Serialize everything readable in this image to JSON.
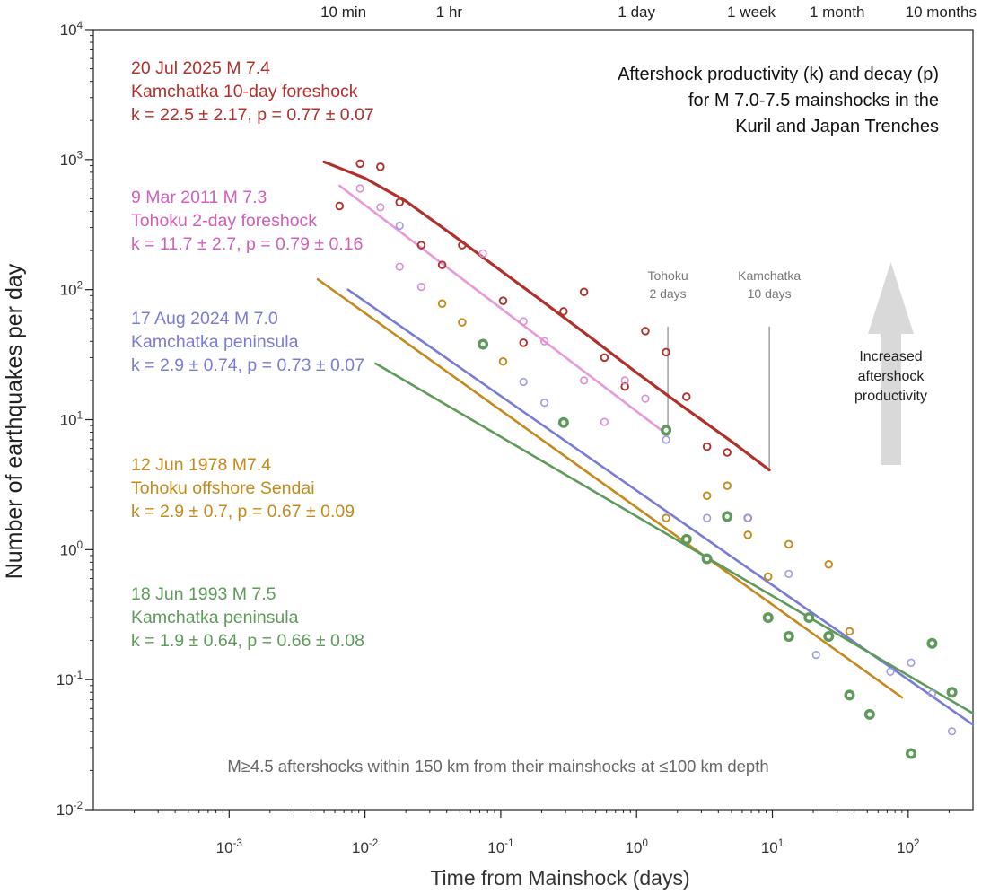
{
  "chart_data": {
    "type": "scatter",
    "title_lines": [
      "Aftershock productivity (k) and decay (p)",
      "for M 7.0-7.5 mainshocks in the",
      "Kuril and Japan Trenches"
    ],
    "xlabel": "Time from Mainshock (days)",
    "ylabel": "Number of earthquakes per day",
    "x_scale": "log",
    "y_scale": "log",
    "xlim": [
      0.0001,
      300
    ],
    "ylim": [
      0.01,
      10000
    ],
    "x_ticks": [
      {
        "value": 0.001,
        "base": "10",
        "exp": "-3"
      },
      {
        "value": 0.01,
        "base": "10",
        "exp": "-2"
      },
      {
        "value": 0.1,
        "base": "10",
        "exp": "-1"
      },
      {
        "value": 1,
        "base": "10",
        "exp": "0"
      },
      {
        "value": 10,
        "base": "10",
        "exp": "1"
      },
      {
        "value": 100,
        "base": "10",
        "exp": "2"
      }
    ],
    "y_ticks": [
      {
        "value": 0.01,
        "base": "10",
        "exp": "-2"
      },
      {
        "value": 0.1,
        "base": "10",
        "exp": "-1"
      },
      {
        "value": 1,
        "base": "10",
        "exp": "0"
      },
      {
        "value": 10,
        "base": "10",
        "exp": "1"
      },
      {
        "value": 100,
        "base": "10",
        "exp": "2"
      },
      {
        "value": 1000,
        "base": "10",
        "exp": "3"
      },
      {
        "value": 10000,
        "base": "10",
        "exp": "4"
      }
    ],
    "top_ticks": [
      {
        "value": 0.00694,
        "label": "10 min"
      },
      {
        "value": 0.0417,
        "label": "1 hr"
      },
      {
        "value": 1,
        "label": "1 day"
      },
      {
        "value": 7,
        "label": "1 week"
      },
      {
        "value": 30,
        "label": "1 month"
      },
      {
        "value": 300,
        "label": "10 months"
      }
    ],
    "series": [
      {
        "key": "kam2025",
        "color": "#b0302c",
        "marker": "open",
        "label_lines": [
          "20 Jul 2025 M 7.4",
          "Kamchatka 10-day foreshock",
          "k = 22.5 ± 2.17, p = 0.77 ± 0.07"
        ],
        "points": [
          [
            0.0065,
            440
          ],
          [
            0.0092,
            930
          ],
          [
            0.013,
            880
          ],
          [
            0.018,
            470
          ],
          [
            0.026,
            220
          ],
          [
            0.037,
            155
          ],
          [
            0.052,
            220
          ],
          [
            0.074,
            38
          ],
          [
            0.104,
            82
          ],
          [
            0.147,
            39
          ],
          [
            0.29,
            68
          ],
          [
            0.41,
            96
          ],
          [
            0.58,
            30
          ],
          [
            0.82,
            18
          ],
          [
            1.16,
            48
          ],
          [
            1.65,
            33
          ],
          [
            2.33,
            15
          ],
          [
            3.3,
            6.2
          ],
          [
            4.65,
            5.6
          ],
          [
            6.6,
            1.75
          ]
        ],
        "fit": {
          "x": [
            0.005,
            0.01,
            0.02,
            0.05,
            0.1,
            0.2,
            0.5,
            1,
            2,
            5,
            9.5
          ],
          "y": [
            960,
            720,
            480,
            240,
            140,
            82,
            40,
            23,
            13.5,
            6.8,
            4.1
          ]
        }
      },
      {
        "key": "toh2011",
        "color": "#d060b8",
        "marker": "open-light",
        "label_lines": [
          "9 Mar 2011 M 7.3",
          "Tohoku 2-day foreshock",
          "k = 11.7 ± 2.7, p = 0.79 ± 0.16"
        ],
        "points": [
          [
            0.0092,
            600
          ],
          [
            0.013,
            430
          ],
          [
            0.018,
            150
          ],
          [
            0.026,
            105
          ],
          [
            0.074,
            190
          ],
          [
            0.147,
            57
          ],
          [
            0.21,
            40
          ],
          [
            0.41,
            20
          ],
          [
            0.58,
            9.6
          ],
          [
            0.82,
            20
          ],
          [
            1.16,
            14.5
          ],
          [
            1.65,
            8
          ]
        ],
        "fit": {
          "x": [
            0.0065,
            1.7
          ],
          "y": [
            630,
            7.6
          ]
        }
      },
      {
        "key": "kam2024",
        "color": "#7a7bd6",
        "marker": "open-light",
        "label_lines": [
          "17 Aug 2024 M 7.0",
          "Kamchatka peninsula",
          "k = 2.9 ± 0.74, p = 0.73 ± 0.07"
        ],
        "points": [
          [
            0.018,
            310
          ],
          [
            0.147,
            19.5
          ],
          [
            0.21,
            13.5
          ],
          [
            1.65,
            7
          ],
          [
            3.3,
            1.75
          ],
          [
            6.6,
            1.75
          ],
          [
            13.2,
            0.65
          ],
          [
            21,
            0.155
          ],
          [
            74,
            0.115
          ],
          [
            105,
            0.135
          ],
          [
            150,
            0.078
          ],
          [
            210,
            0.04
          ]
        ],
        "fit": {
          "x": [
            0.0075,
            300
          ],
          "y": [
            100,
            0.045
          ]
        }
      },
      {
        "key": "toh1978",
        "color": "#c48a1c",
        "marker": "open",
        "label_lines": [
          "12 Jun 1978 M7.4",
          "Tohoku offshore Sendai",
          " k = 2.9 ± 0.7, p = 0.67 ± 0.09"
        ],
        "points": [
          [
            0.037,
            78
          ],
          [
            0.052,
            56
          ],
          [
            0.104,
            28
          ],
          [
            1.65,
            1.75
          ],
          [
            3.3,
            2.6
          ],
          [
            4.65,
            3.1
          ],
          [
            6.6,
            1.3
          ],
          [
            9.3,
            0.62
          ],
          [
            13.2,
            1.1
          ],
          [
            26,
            0.77
          ],
          [
            37,
            0.235
          ]
        ],
        "fit": {
          "x": [
            0.0045,
            90
          ],
          "y": [
            120,
            0.073
          ]
        }
      },
      {
        "key": "kam1993",
        "color": "#5e9a5a",
        "marker": "filled",
        "label_lines": [
          "18 Jun 1993 M 7.5",
          "Kamchatka peninsula",
          "k = 1.9 ± 0.64, p = 0.66 ± 0.08"
        ],
        "points": [
          [
            0.074,
            38
          ],
          [
            0.29,
            9.5
          ],
          [
            1.65,
            8.3
          ],
          [
            2.33,
            1.2
          ],
          [
            3.3,
            0.85
          ],
          [
            4.65,
            1.8
          ],
          [
            9.3,
            0.3
          ],
          [
            13.2,
            0.215
          ],
          [
            18.6,
            0.3
          ],
          [
            26,
            0.215
          ],
          [
            37,
            0.076
          ],
          [
            52,
            0.054
          ],
          [
            105,
            0.027
          ],
          [
            150,
            0.19
          ],
          [
            210,
            0.08
          ]
        ],
        "fit": {
          "x": [
            0.012,
            300
          ],
          "y": [
            27,
            0.055
          ]
        }
      }
    ],
    "vlines": [
      {
        "x": 1.7,
        "y_from": 7.6,
        "y_to": 52,
        "color": "#9a9a9a",
        "label_lines": [
          "Tohoku",
          "2 days"
        ]
      },
      {
        "x": 9.5,
        "y_from": 4.1,
        "y_to": 52,
        "color": "#9a9a9a",
        "label_lines": [
          "Kamchatka",
          "10 days"
        ]
      }
    ],
    "arrow": {
      "label_lines": [
        "Increased",
        "aftershock",
        "productivity"
      ],
      "color": "#d9d9d9"
    },
    "footnote": "M≥4.5 aftershocks within 150 km from their mainshocks at ≤100 km depth",
    "grid": false
  }
}
